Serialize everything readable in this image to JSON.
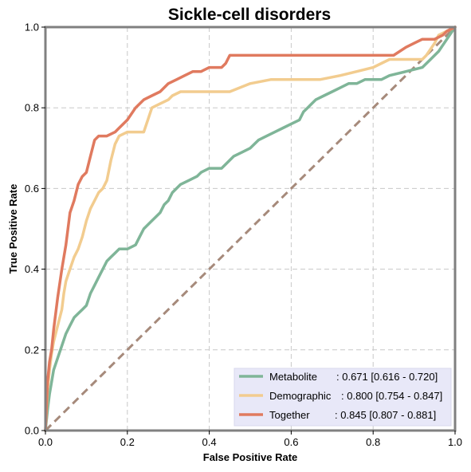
{
  "chart_data": {
    "type": "line",
    "title": "Sickle-cell disorders",
    "xlabel": "False Positive Rate",
    "ylabel": "True Positive Rate",
    "xlim": [
      0,
      1
    ],
    "ylim": [
      0,
      1
    ],
    "grid": true,
    "legend_position": "lower-right",
    "x_ticks": [
      "0.0",
      "0.2",
      "0.4",
      "0.6",
      "0.8",
      "1.0"
    ],
    "y_ticks": [
      "0.0",
      "0.2",
      "0.4",
      "0.6",
      "0.8",
      "1.0"
    ],
    "diagonal_color": "#a68a7b",
    "series": [
      {
        "name": "Metabolite",
        "auc_label": ": 0.671 [0.616 - 0.720]",
        "color": "#7fb598",
        "points": [
          [
            0,
            0
          ],
          [
            0.005,
            0.05
          ],
          [
            0.01,
            0.09
          ],
          [
            0.015,
            0.12
          ],
          [
            0.02,
            0.15
          ],
          [
            0.03,
            0.18
          ],
          [
            0.04,
            0.21
          ],
          [
            0.05,
            0.24
          ],
          [
            0.06,
            0.26
          ],
          [
            0.07,
            0.28
          ],
          [
            0.08,
            0.29
          ],
          [
            0.09,
            0.3
          ],
          [
            0.1,
            0.31
          ],
          [
            0.11,
            0.34
          ],
          [
            0.12,
            0.36
          ],
          [
            0.13,
            0.38
          ],
          [
            0.14,
            0.4
          ],
          [
            0.15,
            0.42
          ],
          [
            0.16,
            0.43
          ],
          [
            0.17,
            0.44
          ],
          [
            0.18,
            0.45
          ],
          [
            0.2,
            0.45
          ],
          [
            0.22,
            0.46
          ],
          [
            0.23,
            0.48
          ],
          [
            0.24,
            0.5
          ],
          [
            0.26,
            0.52
          ],
          [
            0.28,
            0.54
          ],
          [
            0.29,
            0.56
          ],
          [
            0.3,
            0.57
          ],
          [
            0.31,
            0.59
          ],
          [
            0.33,
            0.61
          ],
          [
            0.35,
            0.62
          ],
          [
            0.37,
            0.63
          ],
          [
            0.38,
            0.64
          ],
          [
            0.4,
            0.65
          ],
          [
            0.43,
            0.65
          ],
          [
            0.44,
            0.66
          ],
          [
            0.46,
            0.68
          ],
          [
            0.48,
            0.69
          ],
          [
            0.5,
            0.7
          ],
          [
            0.52,
            0.72
          ],
          [
            0.54,
            0.73
          ],
          [
            0.56,
            0.74
          ],
          [
            0.58,
            0.75
          ],
          [
            0.6,
            0.76
          ],
          [
            0.62,
            0.77
          ],
          [
            0.63,
            0.79
          ],
          [
            0.64,
            0.8
          ],
          [
            0.65,
            0.81
          ],
          [
            0.66,
            0.82
          ],
          [
            0.68,
            0.83
          ],
          [
            0.7,
            0.84
          ],
          [
            0.72,
            0.85
          ],
          [
            0.74,
            0.86
          ],
          [
            0.76,
            0.86
          ],
          [
            0.78,
            0.87
          ],
          [
            0.82,
            0.87
          ],
          [
            0.84,
            0.88
          ],
          [
            0.88,
            0.89
          ],
          [
            0.92,
            0.9
          ],
          [
            0.94,
            0.92
          ],
          [
            0.96,
            0.94
          ],
          [
            0.98,
            0.97
          ],
          [
            1.0,
            1.0
          ]
        ]
      },
      {
        "name": "Demographic",
        "auc_label": ": 0.800 [0.754 - 0.847]",
        "color": "#f2cc8f",
        "points": [
          [
            0,
            0
          ],
          [
            0.005,
            0.1
          ],
          [
            0.01,
            0.15
          ],
          [
            0.015,
            0.19
          ],
          [
            0.02,
            0.22
          ],
          [
            0.03,
            0.26
          ],
          [
            0.04,
            0.3
          ],
          [
            0.045,
            0.34
          ],
          [
            0.05,
            0.37
          ],
          [
            0.06,
            0.4
          ],
          [
            0.07,
            0.43
          ],
          [
            0.08,
            0.45
          ],
          [
            0.09,
            0.48
          ],
          [
            0.1,
            0.52
          ],
          [
            0.11,
            0.55
          ],
          [
            0.12,
            0.57
          ],
          [
            0.13,
            0.59
          ],
          [
            0.14,
            0.6
          ],
          [
            0.15,
            0.62
          ],
          [
            0.16,
            0.67
          ],
          [
            0.17,
            0.71
          ],
          [
            0.18,
            0.73
          ],
          [
            0.2,
            0.74
          ],
          [
            0.21,
            0.74
          ],
          [
            0.24,
            0.74
          ],
          [
            0.25,
            0.77
          ],
          [
            0.26,
            0.8
          ],
          [
            0.28,
            0.81
          ],
          [
            0.3,
            0.82
          ],
          [
            0.31,
            0.83
          ],
          [
            0.33,
            0.84
          ],
          [
            0.35,
            0.84
          ],
          [
            0.45,
            0.84
          ],
          [
            0.5,
            0.86
          ],
          [
            0.55,
            0.87
          ],
          [
            0.67,
            0.87
          ],
          [
            0.72,
            0.88
          ],
          [
            0.76,
            0.89
          ],
          [
            0.8,
            0.9
          ],
          [
            0.82,
            0.91
          ],
          [
            0.84,
            0.92
          ],
          [
            0.86,
            0.92
          ],
          [
            0.92,
            0.92
          ],
          [
            0.93,
            0.93
          ],
          [
            0.95,
            0.96
          ],
          [
            0.96,
            0.98
          ],
          [
            0.98,
            0.99
          ],
          [
            1.0,
            1.0
          ]
        ]
      },
      {
        "name": "Together",
        "auc_label": ": 0.845 [0.807 - 0.881]",
        "color": "#e07a5f",
        "points": [
          [
            0,
            0
          ],
          [
            0.005,
            0.12
          ],
          [
            0.01,
            0.17
          ],
          [
            0.015,
            0.2
          ],
          [
            0.02,
            0.25
          ],
          [
            0.03,
            0.33
          ],
          [
            0.04,
            0.4
          ],
          [
            0.05,
            0.46
          ],
          [
            0.06,
            0.54
          ],
          [
            0.07,
            0.57
          ],
          [
            0.08,
            0.61
          ],
          [
            0.09,
            0.63
          ],
          [
            0.1,
            0.64
          ],
          [
            0.11,
            0.68
          ],
          [
            0.12,
            0.72
          ],
          [
            0.13,
            0.73
          ],
          [
            0.15,
            0.73
          ],
          [
            0.17,
            0.74
          ],
          [
            0.18,
            0.75
          ],
          [
            0.2,
            0.77
          ],
          [
            0.22,
            0.8
          ],
          [
            0.24,
            0.82
          ],
          [
            0.26,
            0.83
          ],
          [
            0.28,
            0.84
          ],
          [
            0.3,
            0.86
          ],
          [
            0.32,
            0.87
          ],
          [
            0.34,
            0.88
          ],
          [
            0.36,
            0.89
          ],
          [
            0.38,
            0.89
          ],
          [
            0.4,
            0.9
          ],
          [
            0.43,
            0.9
          ],
          [
            0.44,
            0.91
          ],
          [
            0.45,
            0.93
          ],
          [
            0.6,
            0.93
          ],
          [
            0.85,
            0.93
          ],
          [
            0.88,
            0.95
          ],
          [
            0.9,
            0.96
          ],
          [
            0.92,
            0.97
          ],
          [
            0.95,
            0.97
          ],
          [
            0.97,
            0.98
          ],
          [
            0.98,
            0.99
          ],
          [
            1.0,
            1.0
          ]
        ]
      }
    ]
  }
}
